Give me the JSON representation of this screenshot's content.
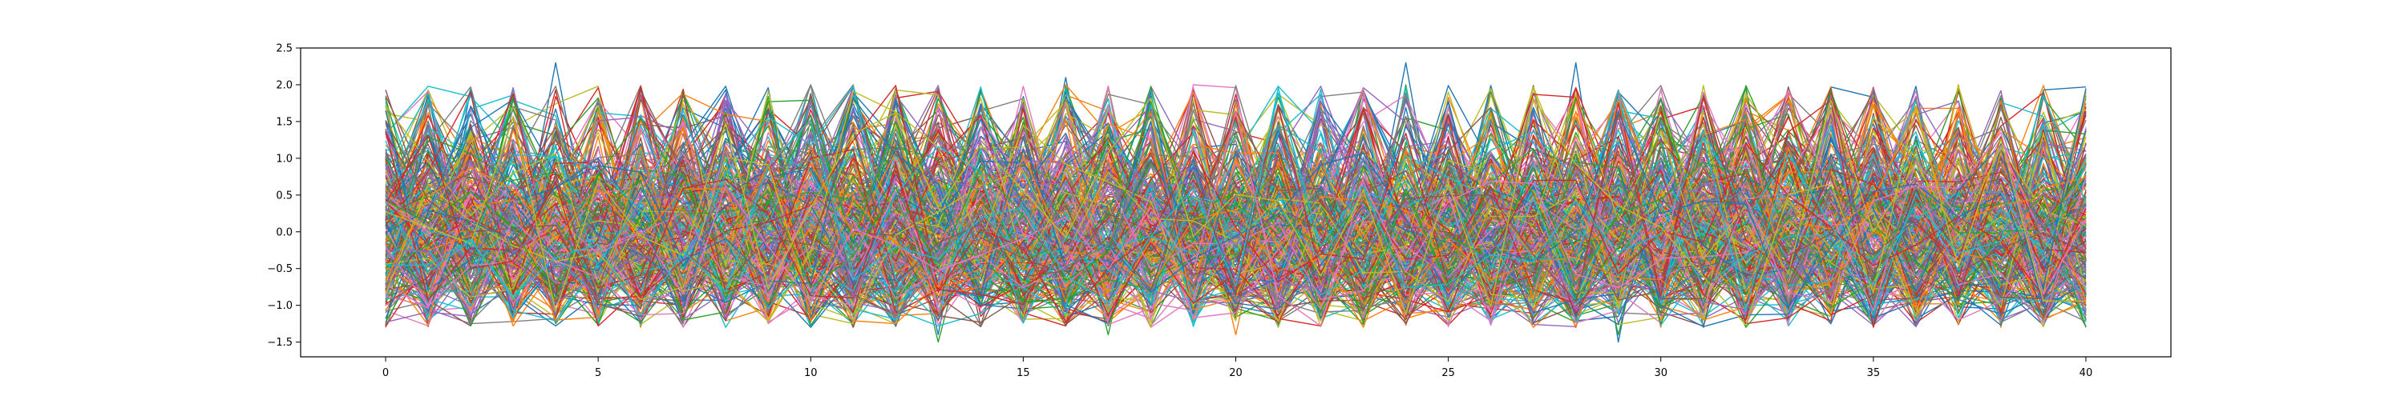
{
  "chart_data": {
    "type": "line",
    "title": "",
    "xlabel": "",
    "ylabel": "",
    "xlim": [
      -2,
      42
    ],
    "ylim": [
      -1.7,
      2.5
    ],
    "x_ticks": [
      0,
      5,
      10,
      15,
      20,
      25,
      30,
      35,
      40
    ],
    "x_tick_labels": [
      "0",
      "5",
      "10",
      "15",
      "20",
      "25",
      "30",
      "35",
      "40"
    ],
    "y_ticks": [
      -1.5,
      -1.0,
      -0.5,
      0.0,
      0.5,
      1.0,
      1.5,
      2.0,
      2.5
    ],
    "y_tick_labels": [
      "−1.5",
      "−1.0",
      "−0.5",
      "0.0",
      "0.5",
      "1.0",
      "1.5",
      "2.0",
      "2.5"
    ],
    "grid": false,
    "legend": "none",
    "x": [
      0,
      1,
      2,
      3,
      4,
      5,
      6,
      7,
      8,
      9,
      10,
      11,
      12,
      13,
      14,
      15,
      16,
      17,
      18,
      19,
      20,
      21,
      22,
      23,
      24,
      25,
      26,
      27,
      28,
      29,
      30,
      31,
      32,
      33,
      34,
      35,
      36,
      37,
      38,
      39,
      40
    ],
    "palette": [
      "#1f77b4",
      "#ff7f0e",
      "#2ca02c",
      "#d62728",
      "#9467bd",
      "#8c564b",
      "#e377c2",
      "#7f7f7f",
      "#bcbd22",
      "#17becf"
    ],
    "series_count": 300,
    "series": [
      {
        "values": [
          1.0,
          -0.9,
          0.9,
          -0.8,
          2.3,
          -0.7,
          0.8,
          -0.9,
          1.0,
          -0.6,
          1.3,
          -0.8,
          1.2,
          -1.4,
          1.7,
          -0.8,
          2.1,
          -1.0,
          1.9,
          -0.9,
          1.8,
          -0.8,
          1.2,
          -0.7,
          2.3,
          -0.9,
          1.1,
          -1.2,
          2.3,
          -1.5,
          1.5,
          -1.3,
          1.2,
          -0.9,
          1.5,
          -1.0,
          1.3,
          -0.8,
          1.0,
          -1.1,
          1.4
        ]
      },
      {
        "values": [
          -0.8,
          1.9,
          -1.0,
          1.4,
          -0.7,
          1.3,
          -1.3,
          1.2,
          -0.8,
          1.7,
          -0.9,
          0.9,
          -1.0,
          0.8,
          -0.8,
          1.5,
          -1.2,
          1.0,
          -0.6,
          1.1,
          -1.4,
          1.2,
          -0.9,
          1.4,
          -1.0,
          1.5,
          -1.1,
          0.9,
          -0.7,
          1.2,
          -1.3,
          1.7,
          -0.8,
          1.2,
          -1.0,
          1.3,
          -0.7,
          2.0,
          -1.3,
          1.5,
          -1.2
        ]
      },
      {
        "values": [
          1.4,
          -1.1,
          1.3,
          -0.9,
          1.0,
          -1.0,
          1.2,
          -0.7,
          0.9,
          -1.0,
          1.4,
          -1.3,
          0.9,
          -1.5,
          0.7,
          -1.2,
          0.9,
          -1.4,
          1.1,
          -0.8,
          0.9,
          -1.0,
          0.8,
          -1.1,
          2.0,
          -1.0,
          0.8,
          -0.9,
          1.1,
          -1.4,
          1.0,
          -1.0,
          0.9,
          -1.2,
          1.0,
          -0.9,
          1.1,
          -0.7,
          1.2,
          -0.8,
          1.2
        ]
      },
      {
        "values": [
          -1.0,
          1.1,
          -0.9,
          1.2,
          -1.0,
          0.9,
          -0.9,
          1.1,
          -1.0,
          1.1,
          -0.8,
          1.0,
          -1.1,
          1.0,
          -1.0,
          1.3,
          -0.9,
          1.1,
          -0.9,
          1.1,
          -1.0,
          0.9,
          -1.0,
          1.2,
          -0.9,
          1.3,
          -1.0,
          1.1,
          -0.8,
          1.1,
          -1.0,
          1.0,
          -1.2,
          1.1,
          -0.9,
          1.1,
          -1.0,
          1.3,
          -1.0,
          1.1,
          -1.0
        ]
      }
    ]
  }
}
